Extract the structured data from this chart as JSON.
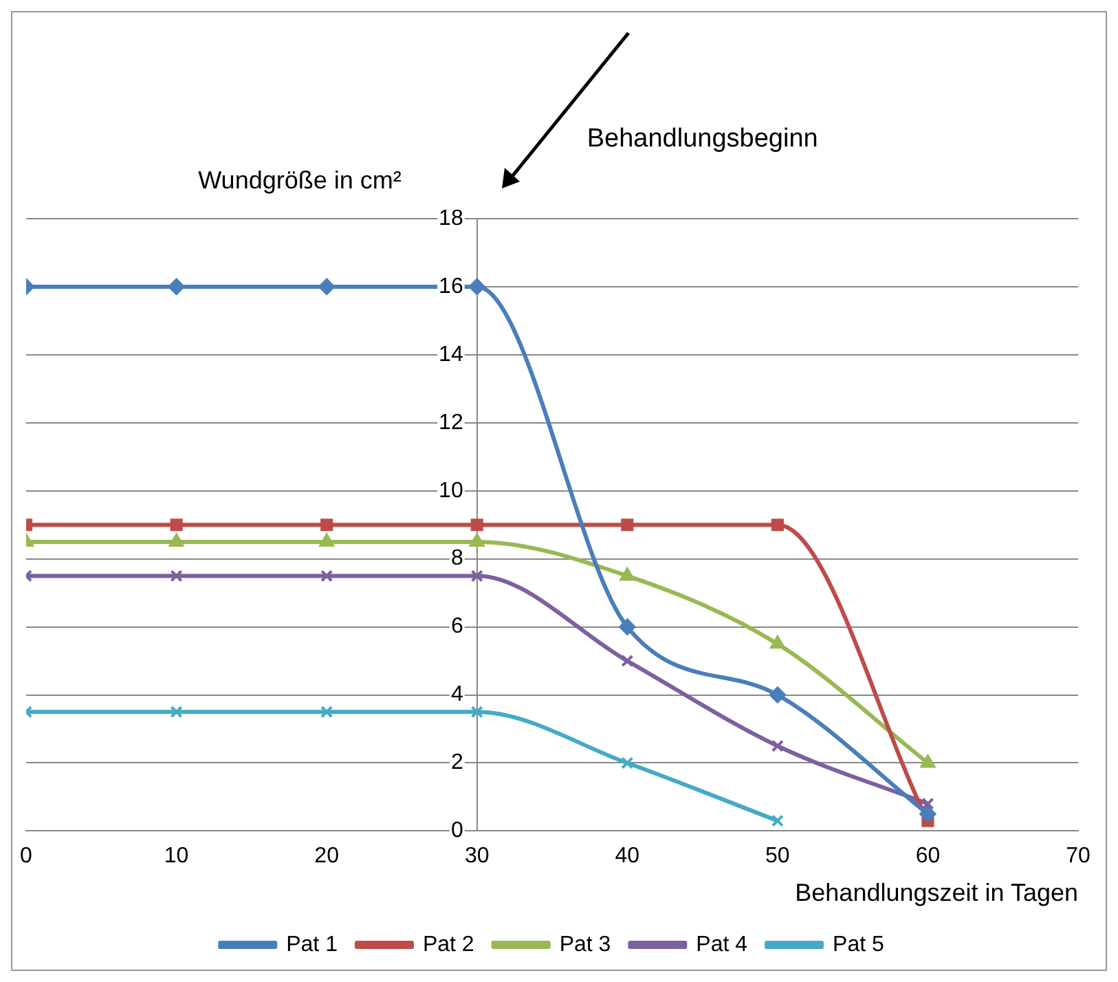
{
  "chart_data": {
    "type": "line",
    "xlabel": "Behandlungszeit in Tagen",
    "ylabel": "Wundgröße in cm²",
    "annotations": [
      "Behandlungsbeginn"
    ],
    "x": [
      0,
      10,
      20,
      30,
      40,
      50,
      60
    ],
    "series": [
      {
        "name": "Pat 1",
        "color": "#4a7ebb",
        "marker": "diamond",
        "values": [
          16,
          16,
          16,
          16,
          6,
          4,
          0.5
        ]
      },
      {
        "name": "Pat 2",
        "color": "#be4b48",
        "marker": "square",
        "values": [
          9,
          9,
          9,
          9,
          9,
          9,
          0.3
        ]
      },
      {
        "name": "Pat 3",
        "color": "#98b954",
        "marker": "triangle",
        "values": [
          8.5,
          8.5,
          8.5,
          8.5,
          7.5,
          5.5,
          2
        ]
      },
      {
        "name": "Pat 4",
        "color": "#7d60a0",
        "marker": "cross",
        "values": [
          7.5,
          7.5,
          7.5,
          7.5,
          5,
          2.5,
          0.8
        ]
      },
      {
        "name": "Pat 5",
        "color": "#46aac5",
        "marker": "cross",
        "values": [
          3.5,
          3.5,
          3.5,
          3.5,
          2,
          0.3,
          null
        ]
      }
    ],
    "xlim": [
      0,
      70
    ],
    "xticks": [
      0,
      10,
      20,
      30,
      40,
      50,
      60,
      70
    ],
    "ylim": [
      0,
      18
    ],
    "yticks": [
      0,
      2,
      4,
      6,
      8,
      10,
      12,
      14,
      16,
      18
    ],
    "grid": "y",
    "legend": "bottom"
  }
}
